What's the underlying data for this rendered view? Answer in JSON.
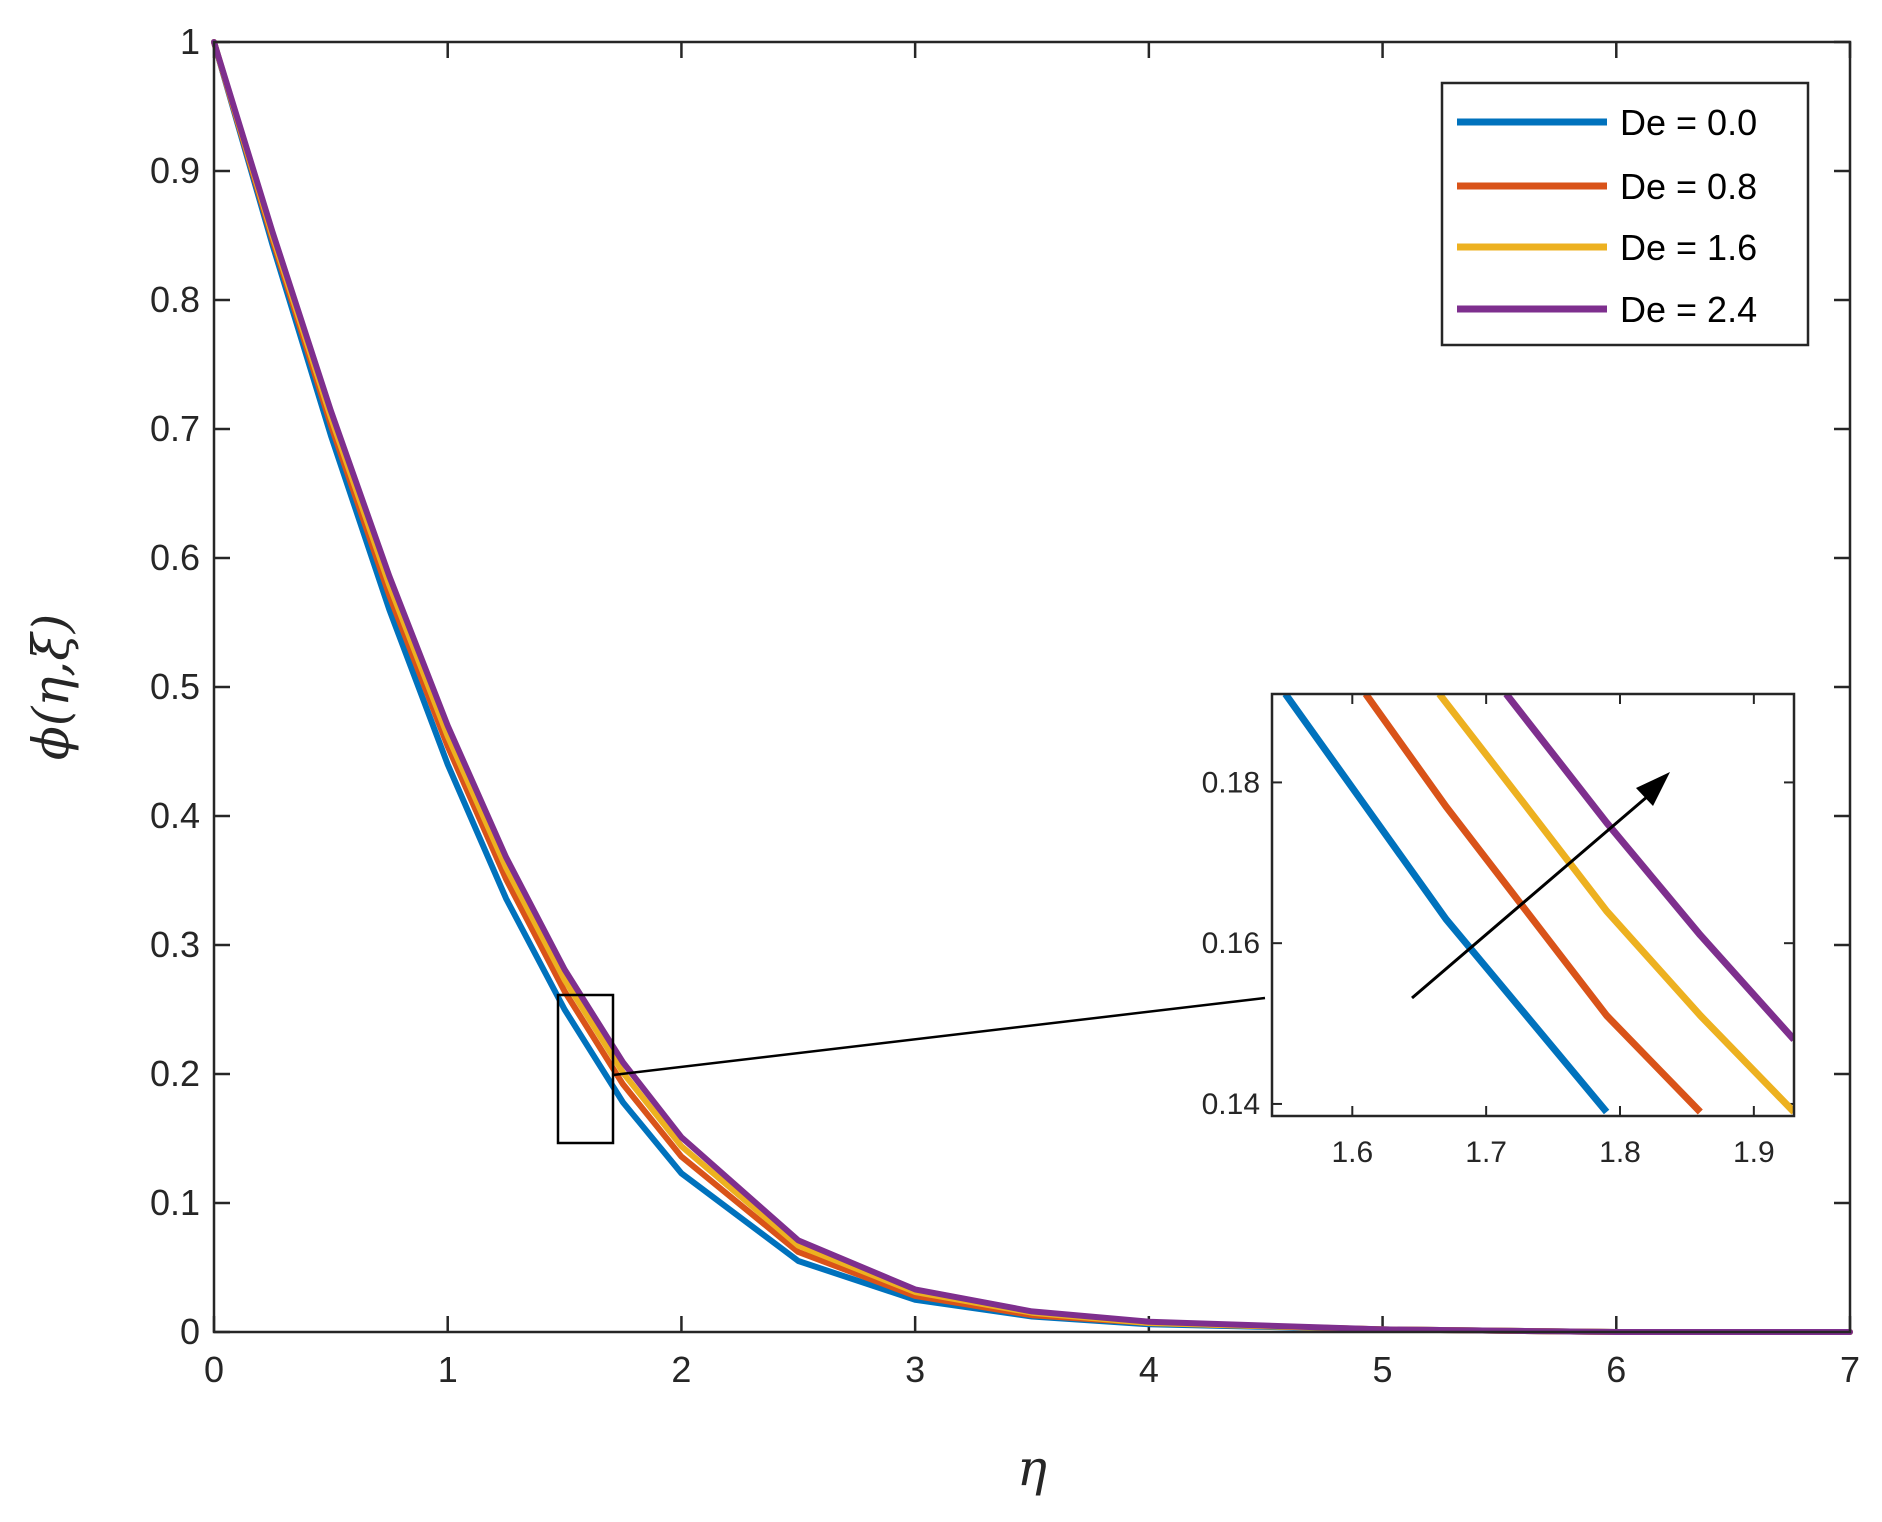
{
  "chart_data": [
    {
      "type": "line",
      "title": "",
      "xlabel": "η",
      "ylabel": "ϕ(η,ξ)",
      "xlim": [
        0,
        7
      ],
      "ylim": [
        0,
        1
      ],
      "xticks": [
        "0",
        "1",
        "2",
        "3",
        "4",
        "5",
        "6",
        "7"
      ],
      "yticks": [
        "0",
        "0.1",
        "0.2",
        "0.3",
        "0.4",
        "0.5",
        "0.6",
        "0.7",
        "0.8",
        "0.9",
        "1"
      ],
      "grid": false,
      "legend_position": "top-right",
      "x": [
        0,
        0.25,
        0.5,
        0.75,
        1,
        1.25,
        1.5,
        1.75,
        2,
        2.5,
        3,
        3.5,
        4,
        5,
        6,
        7
      ],
      "series": [
        {
          "name": "De = 0.0",
          "color": "#0072BD",
          "values": [
            1,
            0.843,
            0.695,
            0.56,
            0.44,
            0.336,
            0.25,
            0.178,
            0.123,
            0.055,
            0.025,
            0.012,
            0.006,
            0.002,
            0.0,
            0.0
          ]
        },
        {
          "name": "De = 0.8",
          "color": "#D95319",
          "values": [
            1,
            0.847,
            0.703,
            0.571,
            0.454,
            0.351,
            0.264,
            0.192,
            0.136,
            0.062,
            0.028,
            0.013,
            0.007,
            0.002,
            0.0,
            0.0
          ]
        },
        {
          "name": "De = 1.6",
          "color": "#EDB120",
          "values": [
            1,
            0.85,
            0.709,
            0.579,
            0.462,
            0.36,
            0.273,
            0.201,
            0.144,
            0.067,
            0.031,
            0.015,
            0.007,
            0.002,
            0.0,
            0.0
          ]
        },
        {
          "name": "De = 2.4",
          "color": "#7E2F8E",
          "values": [
            1,
            0.853,
            0.714,
            0.586,
            0.47,
            0.368,
            0.281,
            0.209,
            0.151,
            0.071,
            0.033,
            0.016,
            0.008,
            0.002,
            0.0,
            0.0
          ]
        }
      ],
      "annotations": [
        "zoom box around η≈1.5–1.7, ϕ≈0.15–0.26 linked to inset"
      ]
    },
    {
      "type": "line",
      "title": "",
      "xlabel": "",
      "ylabel": "",
      "xlim": [
        1.54,
        1.93
      ],
      "ylim": [
        0.1385,
        0.191
      ],
      "xticks": [
        "1.6",
        "1.7",
        "1.8",
        "1.9"
      ],
      "yticks": [
        "0.14",
        "0.16",
        "0.18"
      ],
      "grid": false,
      "series": [
        {
          "name": "De = 0.0",
          "color": "#0072BD",
          "x": [
            1.55,
            1.61,
            1.67,
            1.73,
            1.79
          ],
          "values": [
            0.191,
            0.177,
            0.163,
            0.151,
            0.139
          ]
        },
        {
          "name": "De = 0.8",
          "color": "#D95319",
          "x": [
            1.61,
            1.67,
            1.73,
            1.79,
            1.86
          ],
          "values": [
            0.191,
            0.177,
            0.164,
            0.151,
            0.139
          ]
        },
        {
          "name": "De = 1.6",
          "color": "#EDB120",
          "x": [
            1.665,
            1.73,
            1.79,
            1.86,
            1.93
          ],
          "values": [
            0.191,
            0.177,
            0.164,
            0.151,
            0.139
          ]
        },
        {
          "name": "De = 2.4",
          "color": "#7E2F8E",
          "x": [
            1.715,
            1.79,
            1.86,
            1.93
          ],
          "values": [
            0.191,
            0.175,
            0.161,
            0.148
          ]
        }
      ],
      "annotations": [
        "arrow indicating increasing De"
      ]
    }
  ]
}
